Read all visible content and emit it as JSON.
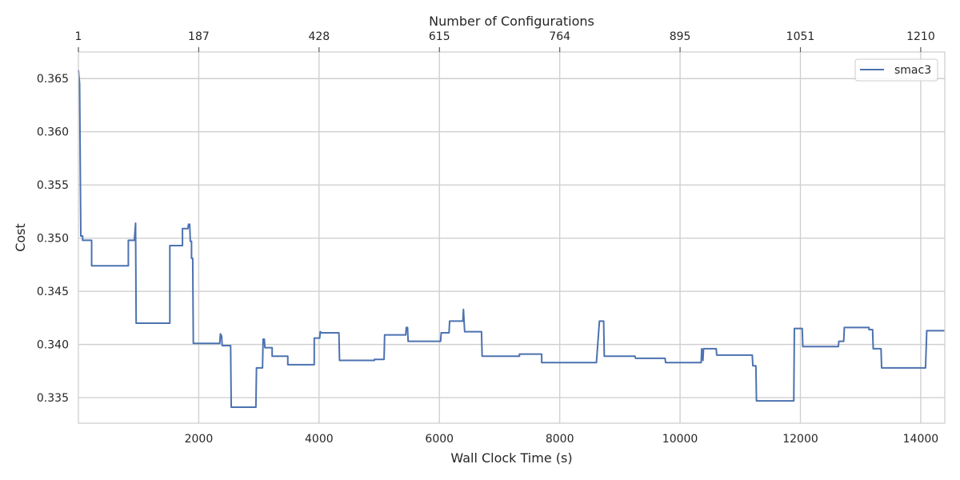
{
  "chart_data": {
    "type": "line",
    "xlabel": "Wall Clock Time (s)",
    "ylabel": "Cost",
    "top_xlabel": "Number of Configurations",
    "xlim": [
      0,
      14400
    ],
    "ylim": [
      0.3326,
      0.3675
    ],
    "x_ticks": [
      2000,
      4000,
      6000,
      8000,
      10000,
      12000,
      14000
    ],
    "x_tick_labels": [
      "2000",
      "4000",
      "6000",
      "8000",
      "10000",
      "12000",
      "14000"
    ],
    "y_ticks": [
      0.335,
      0.34,
      0.345,
      0.35,
      0.355,
      0.36,
      0.365
    ],
    "y_tick_labels": [
      "0.335",
      "0.340",
      "0.345",
      "0.350",
      "0.355",
      "0.360",
      "0.365"
    ],
    "top_ticks": [
      {
        "label": "1",
        "at": 0
      },
      {
        "label": "187",
        "at": 2000
      },
      {
        "label": "428",
        "at": 4000
      },
      {
        "label": "615",
        "at": 6000
      },
      {
        "label": "764",
        "at": 8000
      },
      {
        "label": "895",
        "at": 10000
      },
      {
        "label": "1051",
        "at": 12000
      },
      {
        "label": "1210",
        "at": 14000
      }
    ],
    "grid": true,
    "legend_position": "top-right",
    "colors": {
      "series": "#4c72b0",
      "grid": "#d0d0d0",
      "frame": "#cccccc"
    },
    "series": [
      {
        "name": "smac3",
        "points": [
          [
            0,
            0.3658
          ],
          [
            20,
            0.3645
          ],
          [
            40,
            0.3502
          ],
          [
            70,
            0.3502
          ],
          [
            70,
            0.3498
          ],
          [
            220,
            0.3498
          ],
          [
            220,
            0.3474
          ],
          [
            830,
            0.3474
          ],
          [
            830,
            0.3498
          ],
          [
            930,
            0.3498
          ],
          [
            950,
            0.3514
          ],
          [
            960,
            0.342
          ],
          [
            1520,
            0.342
          ],
          [
            1520,
            0.3493
          ],
          [
            1730,
            0.3493
          ],
          [
            1730,
            0.3509
          ],
          [
            1820,
            0.3509
          ],
          [
            1830,
            0.3513
          ],
          [
            1850,
            0.3513
          ],
          [
            1860,
            0.3497
          ],
          [
            1880,
            0.3497
          ],
          [
            1880,
            0.3481
          ],
          [
            1900,
            0.3481
          ],
          [
            1910,
            0.3401
          ],
          [
            2350,
            0.3401
          ],
          [
            2360,
            0.341
          ],
          [
            2380,
            0.3408
          ],
          [
            2390,
            0.3399
          ],
          [
            2530,
            0.3399
          ],
          [
            2540,
            0.3341
          ],
          [
            2950,
            0.3341
          ],
          [
            2960,
            0.3378
          ],
          [
            3060,
            0.3378
          ],
          [
            3070,
            0.3405
          ],
          [
            3090,
            0.3405
          ],
          [
            3100,
            0.3397
          ],
          [
            3220,
            0.3397
          ],
          [
            3220,
            0.3389
          ],
          [
            3480,
            0.3389
          ],
          [
            3480,
            0.3381
          ],
          [
            3920,
            0.3381
          ],
          [
            3920,
            0.3406
          ],
          [
            4010,
            0.3406
          ],
          [
            4020,
            0.3412
          ],
          [
            4040,
            0.3411
          ],
          [
            4330,
            0.3411
          ],
          [
            4340,
            0.3385
          ],
          [
            4920,
            0.3385
          ],
          [
            4920,
            0.3386
          ],
          [
            5080,
            0.3386
          ],
          [
            5090,
            0.3409
          ],
          [
            5440,
            0.3409
          ],
          [
            5450,
            0.3416
          ],
          [
            5470,
            0.3416
          ],
          [
            5480,
            0.3403
          ],
          [
            6020,
            0.3403
          ],
          [
            6030,
            0.3411
          ],
          [
            6160,
            0.3411
          ],
          [
            6170,
            0.3422
          ],
          [
            6390,
            0.3422
          ],
          [
            6400,
            0.3433
          ],
          [
            6410,
            0.3422
          ],
          [
            6420,
            0.3412
          ],
          [
            6700,
            0.3412
          ],
          [
            6710,
            0.3389
          ],
          [
            7330,
            0.3389
          ],
          [
            7330,
            0.3391
          ],
          [
            7700,
            0.3391
          ],
          [
            7700,
            0.3383
          ],
          [
            8610,
            0.3383
          ],
          [
            8660,
            0.3422
          ],
          [
            8730,
            0.3422
          ],
          [
            8740,
            0.3389
          ],
          [
            9250,
            0.3389
          ],
          [
            9260,
            0.3387
          ],
          [
            9750,
            0.3387
          ],
          [
            9760,
            0.3383
          ],
          [
            10350,
            0.3383
          ],
          [
            10360,
            0.3396
          ],
          [
            10380,
            0.3385
          ],
          [
            10390,
            0.3396
          ],
          [
            10600,
            0.3396
          ],
          [
            10610,
            0.339
          ],
          [
            11200,
            0.339
          ],
          [
            11210,
            0.338
          ],
          [
            11260,
            0.338
          ],
          [
            11270,
            0.3347
          ],
          [
            11890,
            0.3347
          ],
          [
            11900,
            0.3415
          ],
          [
            12030,
            0.3415
          ],
          [
            12040,
            0.3398
          ],
          [
            12630,
            0.3398
          ],
          [
            12640,
            0.3403
          ],
          [
            12720,
            0.3403
          ],
          [
            12730,
            0.3416
          ],
          [
            13140,
            0.3416
          ],
          [
            13140,
            0.3414
          ],
          [
            13200,
            0.3414
          ],
          [
            13210,
            0.3396
          ],
          [
            13340,
            0.3396
          ],
          [
            13350,
            0.3378
          ],
          [
            14080,
            0.3378
          ],
          [
            14100,
            0.3413
          ],
          [
            14400,
            0.3413
          ]
        ]
      }
    ]
  }
}
